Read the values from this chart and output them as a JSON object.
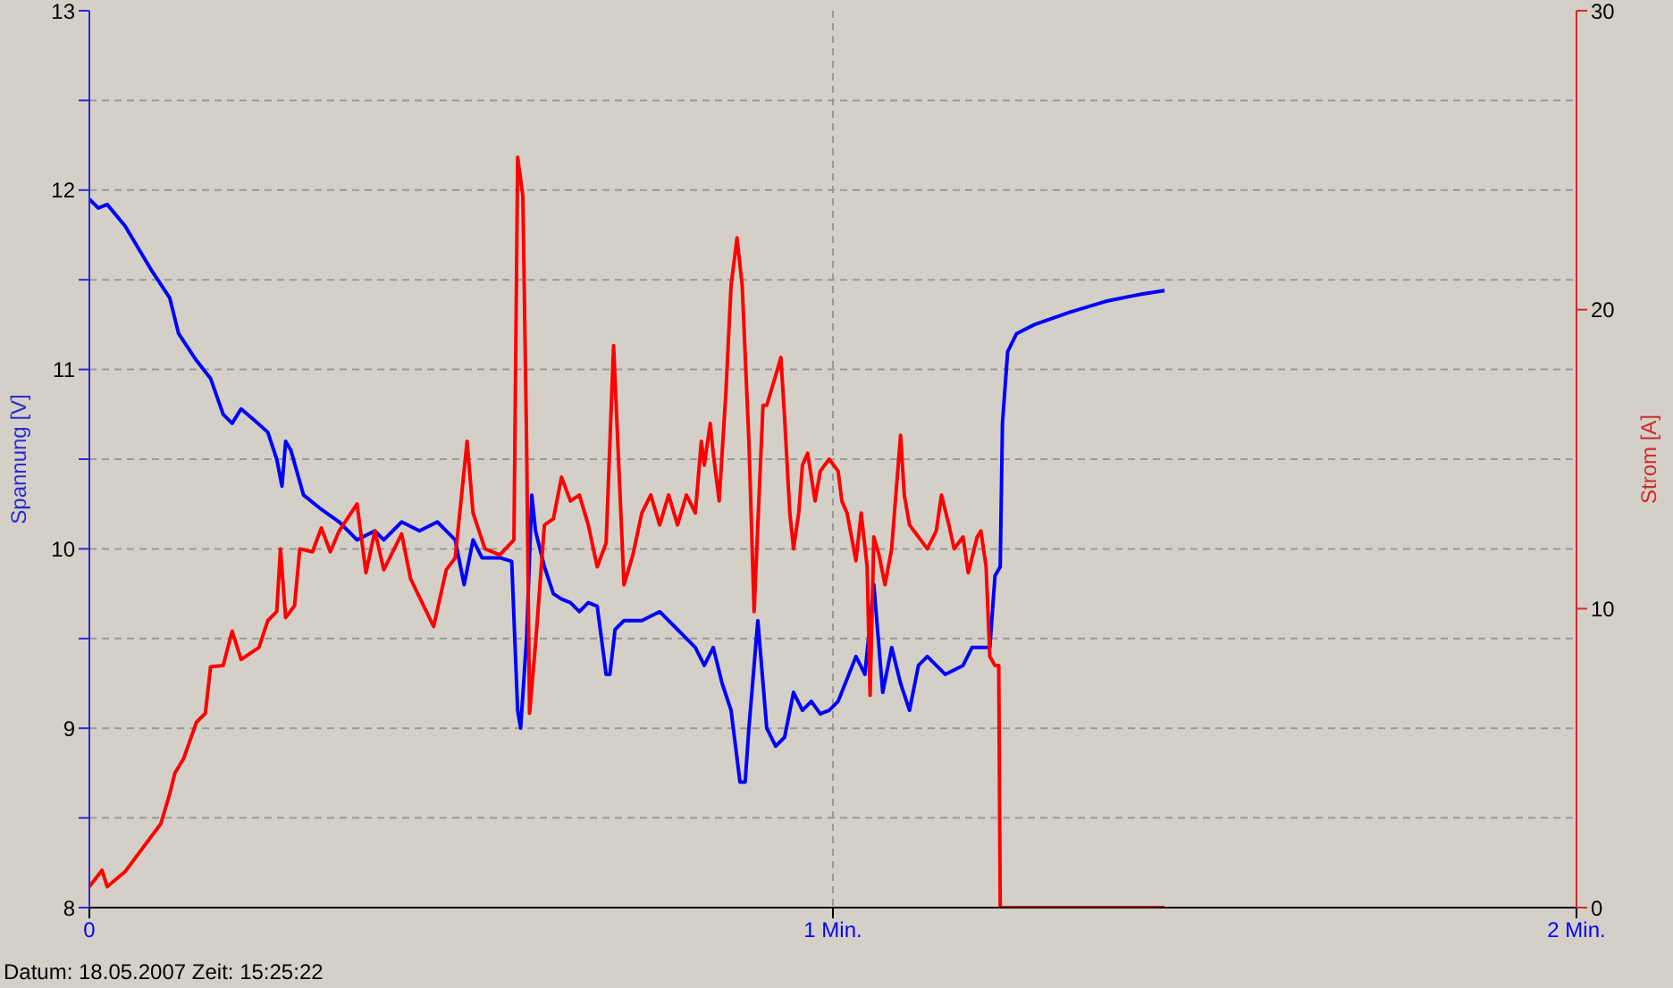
{
  "chart_data": {
    "type": "line",
    "xlabel": null,
    "ylabel": "Spannung [V]",
    "y2label": "Strom [A]",
    "annotations": [
      "Datum: 18.05.2007  Zeit: 15:25:22"
    ],
    "xlim": [
      0,
      2
    ],
    "xticks": [
      0,
      {
        "value": 1,
        "label": "1 Min."
      },
      {
        "value": 2,
        "label": "2 Min."
      }
    ],
    "ylim": [
      8,
      13
    ],
    "yticks": [
      8,
      {
        "value": 8.5,
        "label": null
      },
      9,
      {
        "value": 9.5,
        "label": null
      },
      10,
      {
        "value": 10.5,
        "label": null
      },
      11,
      {
        "value": 11.5,
        "label": null
      },
      12,
      {
        "value": 12.5,
        "label": null
      },
      13
    ],
    "y2lim": [
      0,
      30
    ],
    "y2ticks": [
      0,
      10,
      20,
      30
    ],
    "grid": true,
    "marker": "none",
    "line_style": "solid",
    "series": [
      {
        "color": "#0000ff",
        "x": [
          0,
          0.012,
          0.024,
          0.048,
          0.084,
          0.108,
          0.12,
          0.144,
          0.163,
          0.18,
          0.192,
          0.204,
          0.221,
          0.24,
          0.252,
          0.259,
          0.264,
          0.271,
          0.288,
          0.312,
          0.336,
          0.36,
          0.384,
          0.396,
          0.42,
          0.444,
          0.468,
          0.48,
          0.492,
          0.504,
          0.516,
          0.528,
          0.552,
          0.568,
          0.576,
          0.58,
          0.588,
          0.595,
          0.6,
          0.612,
          0.624,
          0.635,
          0.647,
          0.659,
          0.671,
          0.683,
          0.695,
          0.7,
          0.707,
          0.719,
          0.743,
          0.767,
          0.791,
          0.815,
          0.827,
          0.839,
          0.851,
          0.863,
          0.875,
          0.882,
          0.887,
          0.899,
          0.911,
          0.923,
          0.935,
          0.947,
          0.959,
          0.971,
          0.983,
          0.995,
          1.007,
          1.031,
          1.043,
          1.055,
          1.067,
          1.079,
          1.091,
          1.103,
          1.115,
          1.127,
          1.151,
          1.175,
          1.187,
          1.211,
          1.218,
          1.225,
          1.228,
          1.235,
          1.247,
          1.271,
          1.319,
          1.367,
          1.415,
          1.446
        ],
        "values": [
          11.95,
          11.9,
          11.92,
          11.8,
          11.55,
          11.4,
          11.2,
          11.05,
          10.95,
          10.75,
          10.7,
          10.78,
          10.72,
          10.65,
          10.5,
          10.35,
          10.6,
          10.55,
          10.3,
          10.22,
          10.15,
          10.05,
          10.1,
          10.05,
          10.15,
          10.1,
          10.15,
          10.1,
          10.05,
          9.8,
          10.05,
          9.95,
          9.95,
          9.93,
          9.1,
          9.0,
          9.5,
          10.3,
          10.1,
          9.9,
          9.75,
          9.72,
          9.7,
          9.65,
          9.7,
          9.68,
          9.3,
          9.3,
          9.55,
          9.6,
          9.6,
          9.65,
          9.55,
          9.45,
          9.35,
          9.45,
          9.25,
          9.1,
          8.7,
          8.7,
          9.0,
          9.6,
          9.0,
          8.9,
          8.95,
          9.2,
          9.1,
          9.15,
          9.08,
          9.1,
          9.15,
          9.4,
          9.3,
          9.8,
          9.2,
          9.45,
          9.25,
          9.1,
          9.35,
          9.4,
          9.3,
          9.35,
          9.45,
          9.45,
          9.85,
          9.9,
          10.7,
          11.1,
          11.2,
          11.25,
          11.32,
          11.38,
          11.42,
          11.44
        ]
      },
      {
        "color": "#ff0000",
        "axis": "y2",
        "x": [
          0,
          0.017,
          0.024,
          0.048,
          0.072,
          0.096,
          0.108,
          0.115,
          0.127,
          0.144,
          0.156,
          0.163,
          0.18,
          0.192,
          0.204,
          0.228,
          0.24,
          0.252,
          0.257,
          0.264,
          0.276,
          0.283,
          0.3,
          0.312,
          0.324,
          0.336,
          0.36,
          0.372,
          0.384,
          0.396,
          0.42,
          0.432,
          0.463,
          0.48,
          0.492,
          0.508,
          0.516,
          0.532,
          0.552,
          0.571,
          0.576,
          0.583,
          0.588,
          0.592,
          0.6,
          0.612,
          0.624,
          0.635,
          0.647,
          0.659,
          0.671,
          0.683,
          0.695,
          0.705,
          0.712,
          0.719,
          0.731,
          0.743,
          0.755,
          0.767,
          0.779,
          0.791,
          0.803,
          0.815,
          0.823,
          0.827,
          0.835,
          0.839,
          0.847,
          0.856,
          0.863,
          0.871,
          0.878,
          0.887,
          0.894,
          0.899,
          0.906,
          0.911,
          0.923,
          0.93,
          0.935,
          0.942,
          0.947,
          0.954,
          0.959,
          0.966,
          0.976,
          0.983,
          0.995,
          1.007,
          1.012,
          1.019,
          1.031,
          1.038,
          1.046,
          1.05,
          1.055,
          1.062,
          1.07,
          1.079,
          1.084,
          1.091,
          1.096,
          1.103,
          1.115,
          1.127,
          1.139,
          1.146,
          1.156,
          1.163,
          1.175,
          1.182,
          1.194,
          1.199,
          1.206,
          1.211,
          1.218,
          1.223,
          1.225,
          1.446
        ],
        "values": [
          0.7,
          1.25,
          0.7,
          1.2,
          2.0,
          2.8,
          3.8,
          4.5,
          5.0,
          6.2,
          6.5,
          8.05,
          8.1,
          9.25,
          8.3,
          8.7,
          9.6,
          9.9,
          12.0,
          9.7,
          10.1,
          12.0,
          11.9,
          12.7,
          11.9,
          12.6,
          13.5,
          11.2,
          12.6,
          11.3,
          12.5,
          11.0,
          9.4,
          11.3,
          11.7,
          15.6,
          13.2,
          12.0,
          11.8,
          12.3,
          25.1,
          23.8,
          15.6,
          6.5,
          8.8,
          12.8,
          13.0,
          14.4,
          13.6,
          13.8,
          12.8,
          11.4,
          12.2,
          18.8,
          14.8,
          10.8,
          11.8,
          13.2,
          13.8,
          12.8,
          13.8,
          12.8,
          13.8,
          13.2,
          15.6,
          14.8,
          16.2,
          15.2,
          13.6,
          17.2,
          20.8,
          22.4,
          20.8,
          15.6,
          9.9,
          12.8,
          16.8,
          16.8,
          17.8,
          18.4,
          16.4,
          13.2,
          12.0,
          13.2,
          14.8,
          15.2,
          13.6,
          14.6,
          15.0,
          14.6,
          13.6,
          13.2,
          11.6,
          13.2,
          11.4,
          7.1,
          12.4,
          11.8,
          10.8,
          12.0,
          13.6,
          15.8,
          13.8,
          12.8,
          12.4,
          12.0,
          12.6,
          13.8,
          12.8,
          12.0,
          12.4,
          11.2,
          12.4,
          12.6,
          11.4,
          8.4,
          8.1,
          8.1,
          0,
          0
        ]
      }
    ]
  }
}
